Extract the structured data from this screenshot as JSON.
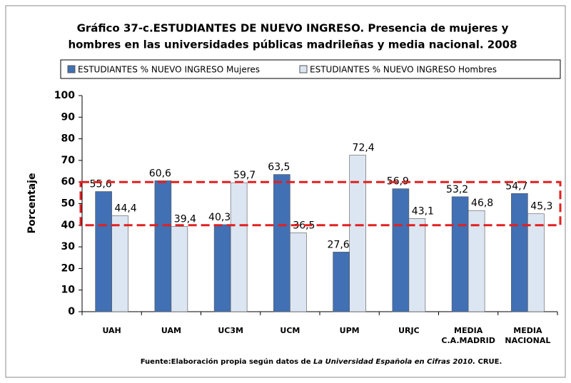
{
  "chart_data": {
    "type": "bar",
    "title_lines": [
      "Gráfico 37-c.ESTUDIANTES DE NUEVO INGRESO. Presencia de mujeres y",
      "hombres en las  universidades públicas madrileñas y media nacional. 2008"
    ],
    "y_label": "Porcentaje",
    "categories": [
      [
        "UAH"
      ],
      [
        "UAM"
      ],
      [
        "UC3M"
      ],
      [
        "UCM"
      ],
      [
        "UPM"
      ],
      [
        "URJC"
      ],
      [
        "MEDIA",
        "C.A.MADRID"
      ],
      [
        "MEDIA",
        "NACIONAL"
      ]
    ],
    "series": [
      {
        "name": "ESTUDIANTES %  NUEVO INGRESO  Mujeres",
        "color": "#4170b4",
        "values": [
          55.6,
          60.6,
          40.3,
          63.5,
          27.6,
          56.9,
          53.2,
          54.7
        ],
        "value_labels": [
          "55,6",
          "60,6",
          "40,3",
          "63,5",
          "27,6",
          "56,9",
          "53,2",
          "54,7"
        ]
      },
      {
        "name": "ESTUDIANTES %  NUEVO INGRESO  Hombres",
        "color": "#dce6f2",
        "values": [
          44.4,
          39.4,
          59.7,
          36.5,
          72.4,
          43.1,
          46.8,
          45.3
        ],
        "value_labels": [
          "44,4",
          "39,4",
          "59,7",
          "36,5",
          "72,4",
          "43,1",
          "46,8",
          "45,3"
        ]
      }
    ],
    "ylim": [
      0,
      100
    ],
    "yticks": [
      0,
      10,
      20,
      30,
      40,
      50,
      60,
      70,
      80,
      90,
      100
    ],
    "highlight_range": [
      40,
      60
    ],
    "highlight_color": "#e02020",
    "source": [
      "Fuente:Elaboración propia según datos de ",
      "La Universidad Española en Cifras 2010.",
      " CRUE."
    ]
  }
}
